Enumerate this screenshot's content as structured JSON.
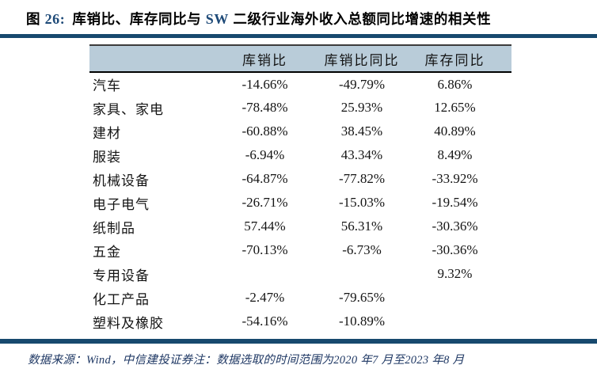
{
  "page": {
    "background": "#ffffff",
    "accent_navy": "#17496e",
    "header_band_color": "#b9ccd9",
    "navy_text_color": "#1e4a78",
    "footer_text_color": "#1f3864"
  },
  "figure_title": {
    "segments": [
      {
        "text": "图"
      },
      {
        "text": "26:"
      },
      {
        "text": "库销比、库存同比与 "
      },
      {
        "text": "SW"
      },
      {
        "text": " 二级行业海外收入总额同比增速的相关性"
      }
    ]
  },
  "table": {
    "headers": [
      "库销比",
      "库销比同比",
      "库存同比"
    ],
    "rows": [
      {
        "industry": "汽车",
        "inventory_sales_ratio": "-14.66%",
        "inventory_sales_ratio_yoy": "-49.79%",
        "inventory_yoy": "6.86%"
      },
      {
        "industry": "家具、家电",
        "inventory_sales_ratio": "-78.48%",
        "inventory_sales_ratio_yoy": "25.93%",
        "inventory_yoy": "12.65%"
      },
      {
        "industry": "建材",
        "inventory_sales_ratio": "-60.88%",
        "inventory_sales_ratio_yoy": "38.45%",
        "inventory_yoy": "40.89%"
      },
      {
        "industry": "服装",
        "inventory_sales_ratio": "-6.94%",
        "inventory_sales_ratio_yoy": "43.34%",
        "inventory_yoy": "8.49%"
      },
      {
        "industry": "机械设备",
        "inventory_sales_ratio": "-64.87%",
        "inventory_sales_ratio_yoy": "-77.82%",
        "inventory_yoy": "-33.92%"
      },
      {
        "industry": "电子电气",
        "inventory_sales_ratio": "-26.71%",
        "inventory_sales_ratio_yoy": "-15.03%",
        "inventory_yoy": "-19.54%"
      },
      {
        "industry": "纸制品",
        "inventory_sales_ratio": "57.44%",
        "inventory_sales_ratio_yoy": "56.31%",
        "inventory_yoy": "-30.36%"
      },
      {
        "industry": "五金",
        "inventory_sales_ratio": "-70.13%",
        "inventory_sales_ratio_yoy": "-6.73%",
        "inventory_yoy": "-30.36%"
      },
      {
        "industry": "专用设备",
        "inventory_sales_ratio": "",
        "inventory_sales_ratio_yoy": "",
        "inventory_yoy": "9.32%"
      },
      {
        "industry": "化工产品",
        "inventory_sales_ratio": "-2.47%",
        "inventory_sales_ratio_yoy": "-79.65%",
        "inventory_yoy": ""
      },
      {
        "industry": "塑料及橡胶",
        "inventory_sales_ratio": "-54.16%",
        "inventory_sales_ratio_yoy": "-10.89%",
        "inventory_yoy": ""
      }
    ]
  },
  "footer": {
    "source_note": "数据来源：Wind，中信建投证券注：数据选取的时间范围为2020 年7 月至2023 年8 月"
  }
}
